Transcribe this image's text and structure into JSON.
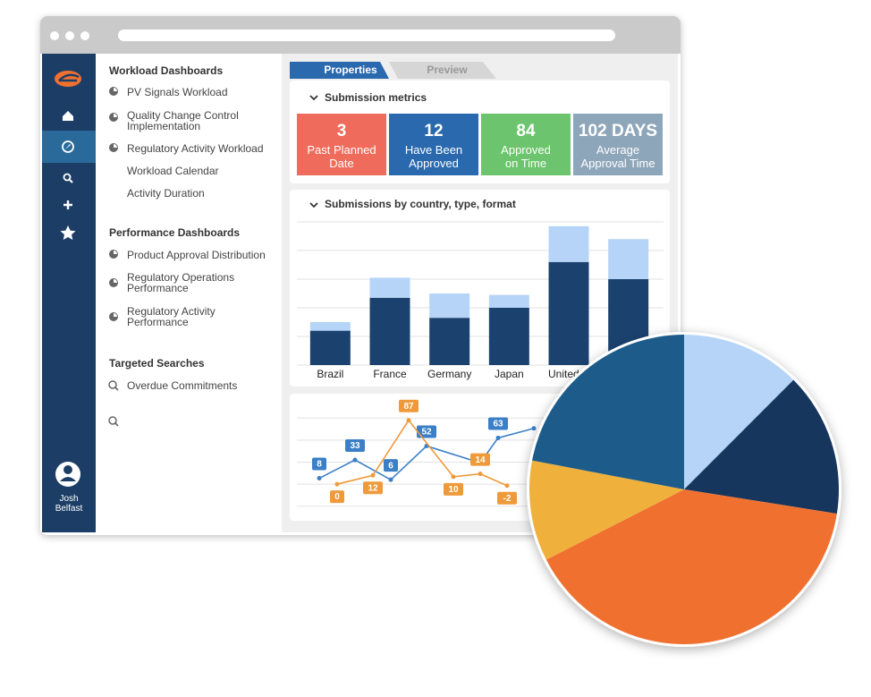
{
  "sidebar": {
    "user": "Josh\nBelfast"
  },
  "nav": {
    "sections": [
      {
        "title": "Workload Dashboards",
        "items": [
          "PV Signals Workload",
          "Quality Change Control\nImplementation",
          "Regulatory Activity Workload",
          "Workload Calendar",
          "Activity Duration"
        ]
      },
      {
        "title": "Performance Dashboards",
        "items": [
          "Product Approval Distribution",
          "Regulatory Operations\nPerformance",
          "Regulatory Activity\nPerformance"
        ]
      },
      {
        "title": "Targeted Searches",
        "items": [
          "Overdue Commitments"
        ]
      }
    ]
  },
  "tabs": [
    "Properties",
    "Preview"
  ],
  "metrics": {
    "title": "Submission metrics",
    "cards": [
      {
        "value": 3,
        "label": "Past Planned\nDate",
        "color": "#ef6b5b"
      },
      {
        "value": 12,
        "label": "Have Been\nApproved",
        "color": "#2a69ae"
      },
      {
        "value": 84,
        "label": "Approved\non Time",
        "color": "#6cc46e"
      },
      {
        "value": "102 DAYS",
        "label": "Average\nApproval Time",
        "color": "#8ea6ba"
      }
    ]
  },
  "chart_data": [
    {
      "type": "bar",
      "title": "Submissions by country, type, format",
      "stacked": true,
      "categories": [
        "Brazil",
        "France",
        "Germany",
        "Japan",
        "United S",
        null
      ],
      "series": [
        {
          "color": "#1b426f",
          "values": [
            1.2,
            2.35,
            1.65,
            2.0,
            3.6,
            3.0
          ]
        },
        {
          "color": "#b6d4f7",
          "values": [
            0.3,
            0.7,
            0.85,
            0.45,
            1.25,
            1.4
          ]
        }
      ],
      "ylim": [
        0,
        5
      ],
      "yticks": [
        0,
        1,
        2,
        3,
        4,
        5
      ],
      "grid": true
    },
    {
      "type": "line",
      "series": [
        {
          "color": "#3a7fc8",
          "x": [
            0,
            2,
            4,
            6,
            9,
            10,
            12
          ],
          "values": [
            8,
            33,
            6,
            52,
            29,
            63,
            76
          ],
          "value_labels": [
            "8",
            "33",
            "6",
            "52",
            null,
            "63",
            null
          ]
        },
        {
          "color": "#ee9a3a",
          "x": [
            1,
            3,
            5,
            7.5,
            9,
            10.5
          ],
          "values": [
            0,
            12,
            87,
            10,
            14,
            -2
          ],
          "value_labels": [
            "0",
            "12",
            "87",
            "10",
            "14",
            "-2"
          ]
        }
      ],
      "xlim": [
        -1.25,
        19.25
      ],
      "ylim": [
        -45,
        105
      ],
      "yticks": [
        -30,
        0,
        30,
        60,
        90
      ],
      "grid": true
    },
    {
      "type": "pie",
      "values": [
        12.5,
        15,
        40,
        10.5,
        22
      ],
      "colors": [
        "#b6d4f7",
        "#17365e",
        "#f07030",
        "#efb03c",
        "#1d5c8a"
      ]
    }
  ]
}
